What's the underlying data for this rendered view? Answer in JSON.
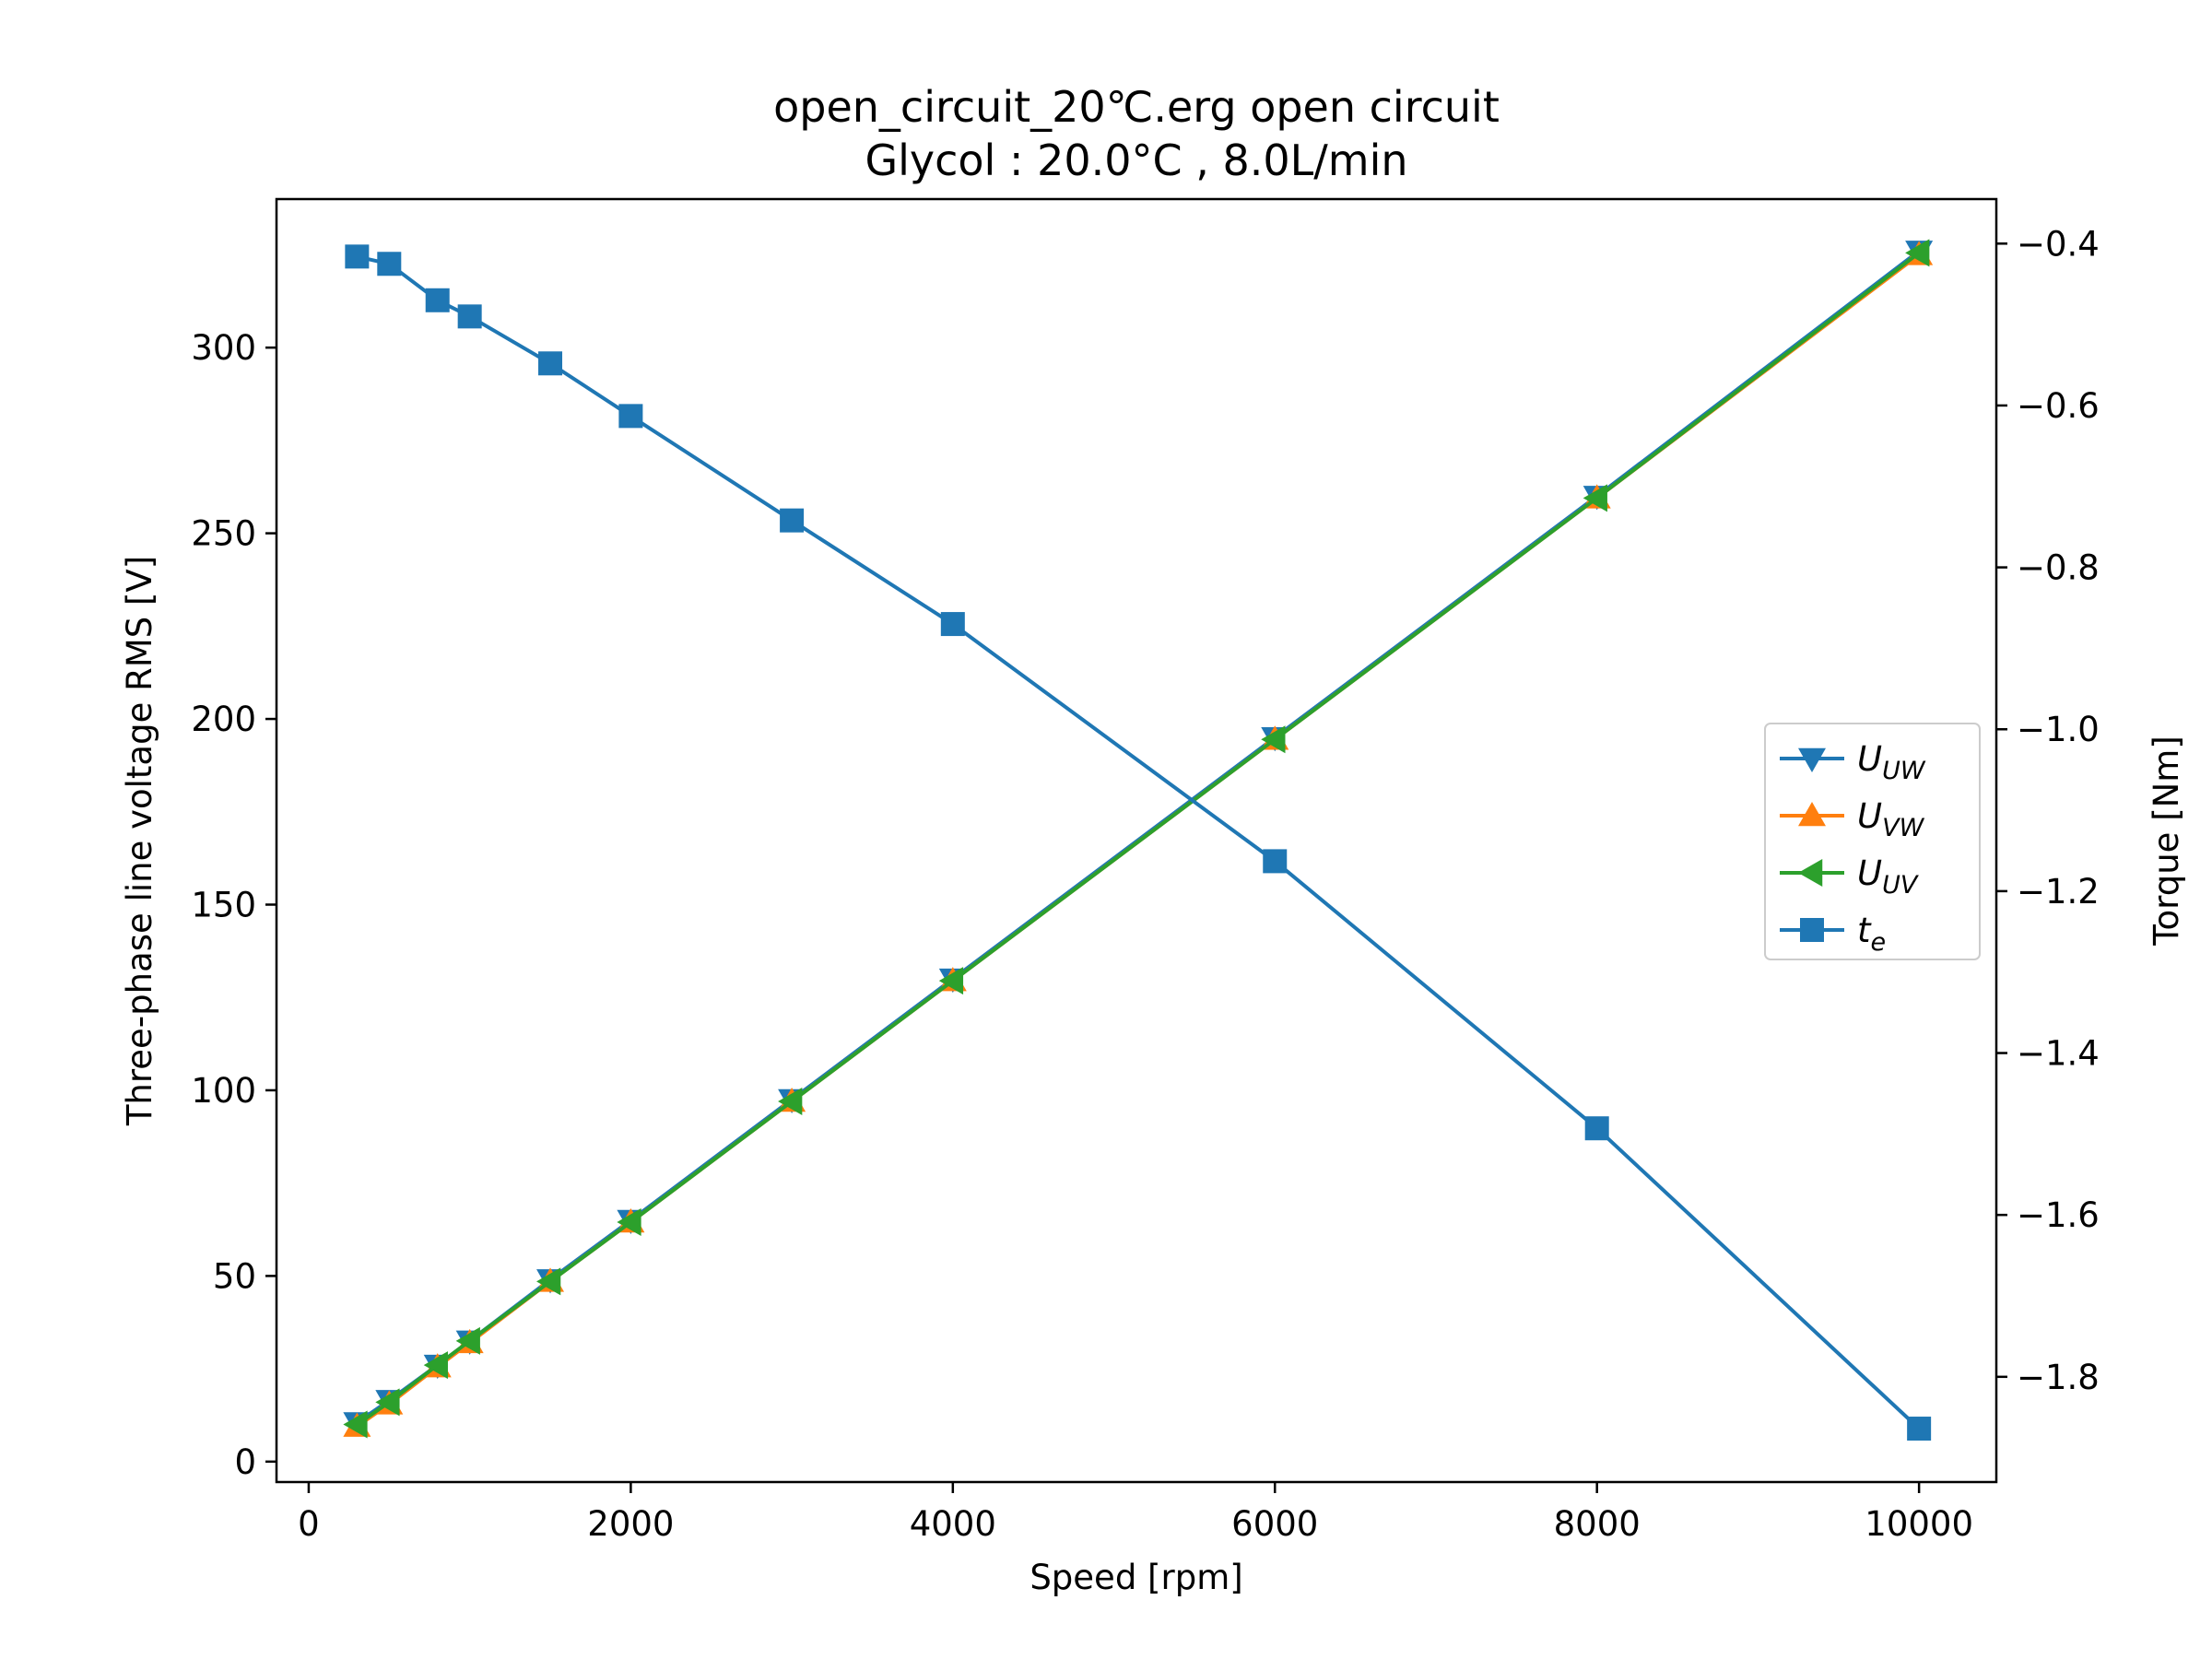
{
  "chart_data": {
    "type": "line",
    "title": "open_circuit_20℃.erg open circuit",
    "subtitle": "Glycol : 20.0°C , 8.0L/min",
    "xlabel": "Speed [rpm]",
    "ylabel": "Three-phase line voltage RMS [V]",
    "y2label": "Torque [Nm]",
    "xlim": [
      -200,
      10480
    ],
    "ylim": [
      -5.5,
      340
    ],
    "y2lim": [
      -1.93,
      -0.345
    ],
    "x_ticks": [
      0,
      2000,
      4000,
      6000,
      8000,
      10000
    ],
    "x_tick_labels": [
      "0",
      "2000",
      "4000",
      "6000",
      "8000",
      "10000"
    ],
    "y_ticks": [
      0,
      50,
      100,
      150,
      200,
      250,
      300
    ],
    "y_tick_labels": [
      "0",
      "50",
      "100",
      "150",
      "200",
      "250",
      "300"
    ],
    "y2_ticks": [
      -0.4,
      -0.6,
      -0.8,
      -1.0,
      -1.2,
      -1.4,
      -1.6,
      -1.8
    ],
    "y2_tick_labels": [
      "−0.4",
      "−0.6",
      "−0.8",
      "−1.0",
      "−1.2",
      "−1.4",
      "−1.6",
      "−1.8"
    ],
    "grid": false,
    "legend_position": "center-right",
    "x": [
      300,
      500,
      800,
      1000,
      1500,
      2000,
      3000,
      4000,
      6000,
      8000,
      10000
    ],
    "series": [
      {
        "name": "U_UW",
        "label_main": "U",
        "label_sub": "UW",
        "axis": "left",
        "marker": "triangle-down",
        "color": "#1f77b4",
        "values": [
          10.5,
          16.5,
          26.0,
          32.5,
          49.0,
          65.0,
          97.5,
          130.0,
          195.0,
          260.0,
          326.0
        ]
      },
      {
        "name": "U_VW",
        "label_main": "U",
        "label_sub": "VW",
        "axis": "left",
        "marker": "triangle-up",
        "color": "#ff7f0e",
        "values": [
          9.5,
          15.5,
          25.5,
          32.0,
          48.5,
          64.5,
          97.0,
          129.5,
          194.5,
          259.5,
          325.0
        ]
      },
      {
        "name": "U_UV",
        "label_main": "U",
        "label_sub": "UV",
        "axis": "left",
        "marker": "triangle-left",
        "color": "#2ca02c",
        "values": [
          10.0,
          16.0,
          26.0,
          32.5,
          48.5,
          64.5,
          97.0,
          129.5,
          194.5,
          259.5,
          325.5
        ]
      },
      {
        "name": "t_e",
        "label_main": "t",
        "label_sub": "e",
        "axis": "right",
        "marker": "square",
        "color": "#1f77b4",
        "values": [
          -0.416,
          -0.425,
          -0.47,
          -0.49,
          -0.548,
          -0.613,
          -0.742,
          -0.87,
          -1.163,
          -1.493,
          -1.864
        ]
      }
    ]
  }
}
